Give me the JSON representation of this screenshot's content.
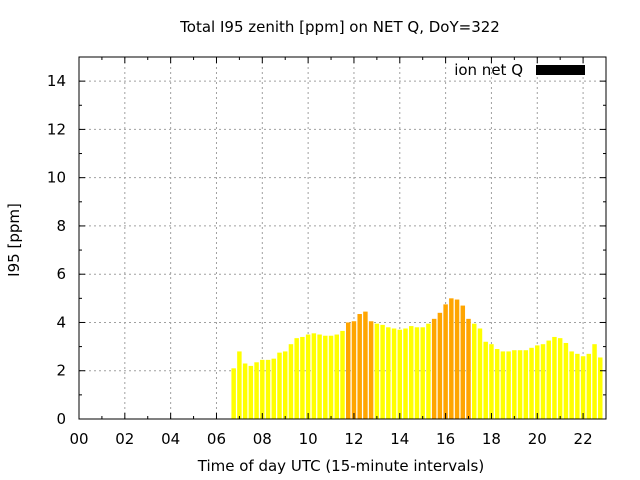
{
  "chart_data": {
    "type": "bar",
    "title": "Total I95 zenith [ppm] on NET Q, DoY=322",
    "xlabel": "Time of day UTC (15-minute intervals)",
    "ylabel": "I95 [ppm]",
    "xlim": [
      0,
      23
    ],
    "ylim": [
      0,
      15
    ],
    "x_ticks": [
      "00",
      "02",
      "04",
      "06",
      "08",
      "10",
      "12",
      "14",
      "16",
      "18",
      "20",
      "22"
    ],
    "y_ticks": [
      "0",
      "2",
      "4",
      "6",
      "8",
      "10",
      "12",
      "14"
    ],
    "grid": true,
    "legend_position": "top-right",
    "legend": [
      {
        "name": "ion net Q",
        "color": "#000000"
      }
    ],
    "colors": {
      "normal": "#ffff00",
      "elevated": "#ffa500",
      "threshold": 4
    },
    "x_start_hours": 6.75,
    "interval_hours": 0.25,
    "values": [
      2.1,
      2.8,
      2.3,
      2.2,
      2.35,
      2.45,
      2.45,
      2.5,
      2.75,
      2.8,
      3.1,
      3.35,
      3.4,
      3.5,
      3.55,
      3.5,
      3.45,
      3.45,
      3.5,
      3.65,
      4.0,
      4.05,
      4.35,
      4.45,
      4.05,
      3.95,
      3.9,
      3.8,
      3.75,
      3.7,
      3.75,
      3.85,
      3.8,
      3.8,
      3.95,
      4.15,
      4.4,
      4.75,
      5.0,
      4.95,
      4.7,
      4.15,
      3.95,
      3.75,
      3.2,
      3.1,
      2.9,
      2.8,
      2.8,
      2.85,
      2.85,
      2.85,
      2.95,
      3.05,
      3.1,
      3.25,
      3.4,
      3.35,
      3.15,
      2.8,
      2.7,
      2.6,
      2.7,
      3.1,
      2.55
    ]
  }
}
